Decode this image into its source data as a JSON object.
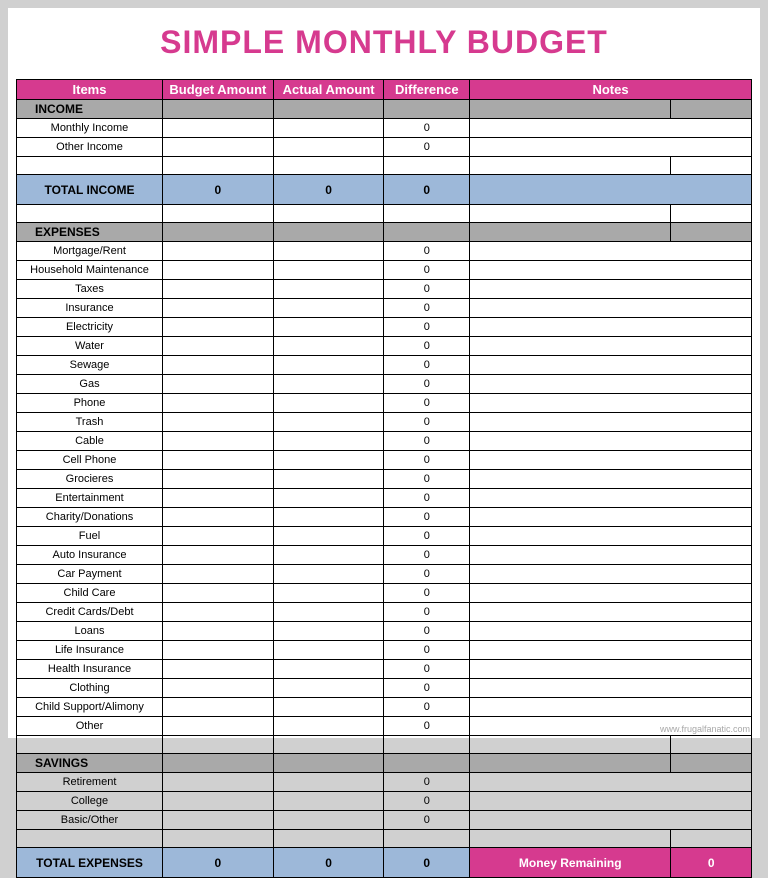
{
  "colors": {
    "title": "#d63a8f",
    "headerBg": "#d63a8f",
    "sectionBg": "#a9a9a9",
    "totalBg": "#9db8d9",
    "moneyRemainingBg": "#d63a8f",
    "moneyRemainingText": "#ffffff"
  },
  "title": "SIMPLE MONTHLY BUDGET",
  "headers": {
    "items": "Items",
    "budget": "Budget Amount",
    "actual": "Actual Amount",
    "diff": "Difference",
    "notes": "Notes"
  },
  "sections": {
    "income": "INCOME",
    "expenses": "EXPENSES",
    "savings": "SAVINGS"
  },
  "incomeRows": [
    {
      "label": "Monthly Income",
      "budget": "",
      "actual": "",
      "diff": "0",
      "notes": ""
    },
    {
      "label": "Other Income",
      "budget": "",
      "actual": "",
      "diff": "0",
      "notes": ""
    }
  ],
  "totalIncome": {
    "label": "TOTAL INCOME",
    "budget": "0",
    "actual": "0",
    "diff": "0",
    "notes": ""
  },
  "expenseRows": [
    {
      "label": "Mortgage/Rent",
      "budget": "",
      "actual": "",
      "diff": "0",
      "notes": ""
    },
    {
      "label": "Household Maintenance",
      "budget": "",
      "actual": "",
      "diff": "0",
      "notes": ""
    },
    {
      "label": "Taxes",
      "budget": "",
      "actual": "",
      "diff": "0",
      "notes": ""
    },
    {
      "label": "Insurance",
      "budget": "",
      "actual": "",
      "diff": "0",
      "notes": ""
    },
    {
      "label": "Electricity",
      "budget": "",
      "actual": "",
      "diff": "0",
      "notes": ""
    },
    {
      "label": "Water",
      "budget": "",
      "actual": "",
      "diff": "0",
      "notes": ""
    },
    {
      "label": "Sewage",
      "budget": "",
      "actual": "",
      "diff": "0",
      "notes": ""
    },
    {
      "label": "Gas",
      "budget": "",
      "actual": "",
      "diff": "0",
      "notes": ""
    },
    {
      "label": "Phone",
      "budget": "",
      "actual": "",
      "diff": "0",
      "notes": ""
    },
    {
      "label": "Trash",
      "budget": "",
      "actual": "",
      "diff": "0",
      "notes": ""
    },
    {
      "label": "Cable",
      "budget": "",
      "actual": "",
      "diff": "0",
      "notes": ""
    },
    {
      "label": "Cell Phone",
      "budget": "",
      "actual": "",
      "diff": "0",
      "notes": ""
    },
    {
      "label": "Grocieres",
      "budget": "",
      "actual": "",
      "diff": "0",
      "notes": ""
    },
    {
      "label": "Entertainment",
      "budget": "",
      "actual": "",
      "diff": "0",
      "notes": ""
    },
    {
      "label": "Charity/Donations",
      "budget": "",
      "actual": "",
      "diff": "0",
      "notes": ""
    },
    {
      "label": "Fuel",
      "budget": "",
      "actual": "",
      "diff": "0",
      "notes": ""
    },
    {
      "label": "Auto Insurance",
      "budget": "",
      "actual": "",
      "diff": "0",
      "notes": ""
    },
    {
      "label": "Car Payment",
      "budget": "",
      "actual": "",
      "diff": "0",
      "notes": ""
    },
    {
      "label": "Child Care",
      "budget": "",
      "actual": "",
      "diff": "0",
      "notes": ""
    },
    {
      "label": "Credit Cards/Debt",
      "budget": "",
      "actual": "",
      "diff": "0",
      "notes": ""
    },
    {
      "label": "Loans",
      "budget": "",
      "actual": "",
      "diff": "0",
      "notes": ""
    },
    {
      "label": "Life Insurance",
      "budget": "",
      "actual": "",
      "diff": "0",
      "notes": ""
    },
    {
      "label": "Health Insurance",
      "budget": "",
      "actual": "",
      "diff": "0",
      "notes": ""
    },
    {
      "label": "Clothing",
      "budget": "",
      "actual": "",
      "diff": "0",
      "notes": ""
    },
    {
      "label": "Child Support/Alimony",
      "budget": "",
      "actual": "",
      "diff": "0",
      "notes": ""
    },
    {
      "label": "Other",
      "budget": "",
      "actual": "",
      "diff": "0",
      "notes": ""
    }
  ],
  "savingsRows": [
    {
      "label": "Retirement",
      "budget": "",
      "actual": "",
      "diff": "0",
      "notes": ""
    },
    {
      "label": "College",
      "budget": "",
      "actual": "",
      "diff": "0",
      "notes": ""
    },
    {
      "label": "Basic/Other",
      "budget": "",
      "actual": "",
      "diff": "0",
      "notes": ""
    }
  ],
  "totalExpenses": {
    "label": "TOTAL EXPENSES",
    "budget": "0",
    "actual": "0",
    "diff": "0"
  },
  "moneyRemaining": {
    "label": "Money Remaining",
    "value": "0"
  },
  "footer": "www.frugalfanatic.com"
}
